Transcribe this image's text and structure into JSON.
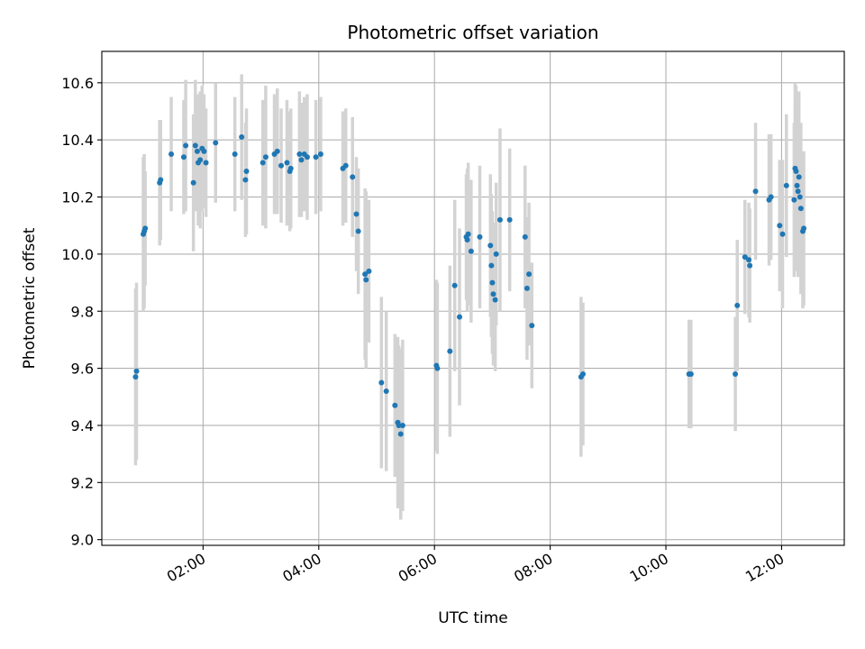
{
  "chart_data": {
    "type": "scatter",
    "title": "Photometric offset variation",
    "xlabel": "UTC time",
    "ylabel": "Photometric offset",
    "x_ticks": [
      "02:00",
      "04:00",
      "06:00",
      "08:00",
      "10:00",
      "12:00"
    ],
    "y_ticks": [
      "9.0",
      "9.2",
      "9.4",
      "9.6",
      "9.8",
      "10.0",
      "10.2",
      "10.4",
      "10.6"
    ],
    "xlim": [
      "00:15",
      "13:05"
    ],
    "ylim": [
      8.98,
      10.71
    ],
    "grid": true,
    "colors": {
      "point": "#1f77b4",
      "errorbar": "#d3d3d3",
      "grid": "#b0b0b0"
    },
    "series": [
      {
        "points": [
          {
            "x": "00:50",
            "y": 9.57,
            "err": 0.31
          },
          {
            "x": "00:51",
            "y": 9.59,
            "err": 0.31
          },
          {
            "x": "00:58",
            "y": 10.07,
            "err": 0.27
          },
          {
            "x": "00:59",
            "y": 10.08,
            "err": 0.27
          },
          {
            "x": "01:00",
            "y": 10.09,
            "err": 0.2
          },
          {
            "x": "01:15",
            "y": 10.25,
            "err": 0.22
          },
          {
            "x": "01:16",
            "y": 10.26,
            "err": 0.21
          },
          {
            "x": "01:27",
            "y": 10.35,
            "err": 0.2
          },
          {
            "x": "01:40",
            "y": 10.34,
            "err": 0.2
          },
          {
            "x": "01:42",
            "y": 10.38,
            "err": 0.23
          },
          {
            "x": "01:50",
            "y": 10.25,
            "err": 0.24
          },
          {
            "x": "01:52",
            "y": 10.38,
            "err": 0.23
          },
          {
            "x": "01:54",
            "y": 10.36,
            "err": 0.2
          },
          {
            "x": "01:55",
            "y": 10.32,
            "err": 0.22
          },
          {
            "x": "01:57",
            "y": 10.33,
            "err": 0.24
          },
          {
            "x": "01:59",
            "y": 10.37,
            "err": 0.22
          },
          {
            "x": "02:01",
            "y": 10.36,
            "err": 0.2
          },
          {
            "x": "02:03",
            "y": 10.32,
            "err": 0.19
          },
          {
            "x": "02:13",
            "y": 10.39,
            "err": 0.21
          },
          {
            "x": "02:33",
            "y": 10.35,
            "err": 0.2
          },
          {
            "x": "02:40",
            "y": 10.41,
            "err": 0.22
          },
          {
            "x": "02:44",
            "y": 10.26,
            "err": 0.2
          },
          {
            "x": "02:45",
            "y": 10.29,
            "err": 0.22
          },
          {
            "x": "03:02",
            "y": 10.32,
            "err": 0.22
          },
          {
            "x": "03:05",
            "y": 10.34,
            "err": 0.25
          },
          {
            "x": "03:14",
            "y": 10.35,
            "err": 0.21
          },
          {
            "x": "03:17",
            "y": 10.36,
            "err": 0.22
          },
          {
            "x": "03:21",
            "y": 10.31,
            "err": 0.2
          },
          {
            "x": "03:27",
            "y": 10.32,
            "err": 0.22
          },
          {
            "x": "03:30",
            "y": 10.29,
            "err": 0.21
          },
          {
            "x": "03:31",
            "y": 10.3,
            "err": 0.21
          },
          {
            "x": "03:40",
            "y": 10.35,
            "err": 0.22
          },
          {
            "x": "03:42",
            "y": 10.33,
            "err": 0.2
          },
          {
            "x": "03:45",
            "y": 10.35,
            "err": 0.2
          },
          {
            "x": "03:48",
            "y": 10.34,
            "err": 0.22
          },
          {
            "x": "03:57",
            "y": 10.34,
            "err": 0.2
          },
          {
            "x": "04:02",
            "y": 10.35,
            "err": 0.2
          },
          {
            "x": "04:25",
            "y": 10.3,
            "err": 0.2
          },
          {
            "x": "04:28",
            "y": 10.31,
            "err": 0.2
          },
          {
            "x": "04:35",
            "y": 10.27,
            "err": 0.21
          },
          {
            "x": "04:39",
            "y": 10.14,
            "err": 0.2
          },
          {
            "x": "04:41",
            "y": 10.08,
            "err": 0.22
          },
          {
            "x": "04:48",
            "y": 9.93,
            "err": 0.3
          },
          {
            "x": "04:49",
            "y": 9.91,
            "err": 0.31
          },
          {
            "x": "04:52",
            "y": 9.94,
            "err": 0.25
          },
          {
            "x": "05:05",
            "y": 9.55,
            "err": 0.3
          },
          {
            "x": "05:10",
            "y": 9.52,
            "err": 0.28
          },
          {
            "x": "05:19",
            "y": 9.47,
            "err": 0.25
          },
          {
            "x": "05:22",
            "y": 9.41,
            "err": 0.3
          },
          {
            "x": "05:23",
            "y": 9.4,
            "err": 0.28
          },
          {
            "x": "05:25",
            "y": 9.37,
            "err": 0.3
          },
          {
            "x": "05:27",
            "y": 9.4,
            "err": 0.3
          },
          {
            "x": "06:02",
            "y": 9.61,
            "err": 0.3
          },
          {
            "x": "06:03",
            "y": 9.6,
            "err": 0.3
          },
          {
            "x": "06:16",
            "y": 9.66,
            "err": 0.3
          },
          {
            "x": "06:21",
            "y": 9.89,
            "err": 0.3
          },
          {
            "x": "06:26",
            "y": 9.78,
            "err": 0.31
          },
          {
            "x": "06:33",
            "y": 10.06,
            "err": 0.22
          },
          {
            "x": "06:34",
            "y": 10.05,
            "err": 0.25
          },
          {
            "x": "06:35",
            "y": 10.07,
            "err": 0.25
          },
          {
            "x": "06:38",
            "y": 10.01,
            "err": 0.25
          },
          {
            "x": "06:47",
            "y": 10.06,
            "err": 0.25
          },
          {
            "x": "06:58",
            "y": 10.03,
            "err": 0.25
          },
          {
            "x": "06:59",
            "y": 9.96,
            "err": 0.25
          },
          {
            "x": "07:00",
            "y": 9.9,
            "err": 0.25
          },
          {
            "x": "07:01",
            "y": 9.86,
            "err": 0.25
          },
          {
            "x": "07:03",
            "y": 9.84,
            "err": 0.25
          },
          {
            "x": "07:04",
            "y": 10.0,
            "err": 0.25
          },
          {
            "x": "07:08",
            "y": 10.12,
            "err": 0.32
          },
          {
            "x": "07:18",
            "y": 10.12,
            "err": 0.25
          },
          {
            "x": "07:34",
            "y": 10.06,
            "err": 0.25
          },
          {
            "x": "07:36",
            "y": 9.88,
            "err": 0.25
          },
          {
            "x": "07:38",
            "y": 9.93,
            "err": 0.25
          },
          {
            "x": "07:41",
            "y": 9.75,
            "err": 0.22
          },
          {
            "x": "08:32",
            "y": 9.57,
            "err": 0.28
          },
          {
            "x": "08:34",
            "y": 9.58,
            "err": 0.25
          },
          {
            "x": "10:24",
            "y": 9.58,
            "err": 0.19
          },
          {
            "x": "10:26",
            "y": 9.58,
            "err": 0.19
          },
          {
            "x": "11:12",
            "y": 9.58,
            "err": 0.2
          },
          {
            "x": "11:14",
            "y": 9.82,
            "err": 0.23
          },
          {
            "x": "11:22",
            "y": 9.99,
            "err": 0.2
          },
          {
            "x": "11:26",
            "y": 9.98,
            "err": 0.2
          },
          {
            "x": "11:27",
            "y": 9.96,
            "err": 0.2
          },
          {
            "x": "11:33",
            "y": 10.22,
            "err": 0.24
          },
          {
            "x": "11:47",
            "y": 10.19,
            "err": 0.23
          },
          {
            "x": "11:49",
            "y": 10.2,
            "err": 0.22
          },
          {
            "x": "11:58",
            "y": 10.1,
            "err": 0.23
          },
          {
            "x": "12:01",
            "y": 10.07,
            "err": 0.26
          },
          {
            "x": "12:05",
            "y": 10.24,
            "err": 0.25
          },
          {
            "x": "12:13",
            "y": 10.19,
            "err": 0.27
          },
          {
            "x": "12:14",
            "y": 10.3,
            "err": 0.3
          },
          {
            "x": "12:15",
            "y": 10.29,
            "err": 0.3
          },
          {
            "x": "12:16",
            "y": 10.24,
            "err": 0.3
          },
          {
            "x": "12:17",
            "y": 10.22,
            "err": 0.3
          },
          {
            "x": "12:18",
            "y": 10.27,
            "err": 0.3
          },
          {
            "x": "12:19",
            "y": 10.2,
            "err": 0.25
          },
          {
            "x": "12:20",
            "y": 10.16,
            "err": 0.3
          },
          {
            "x": "12:22",
            "y": 10.08,
            "err": 0.27
          },
          {
            "x": "12:23",
            "y": 10.09,
            "err": 0.27
          }
        ]
      }
    ]
  }
}
